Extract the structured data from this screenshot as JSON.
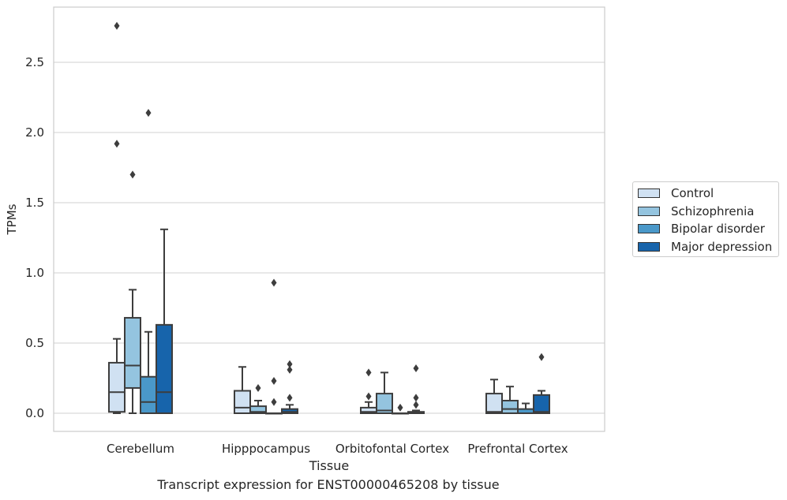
{
  "chart_data": {
    "type": "box",
    "title": "",
    "caption": "Transcript expression for ENST00000465208 by tissue",
    "xlabel": "Tissue",
    "ylabel": "TPMs",
    "ylim": [
      -0.13,
      2.9
    ],
    "yticks": [
      0.0,
      0.5,
      1.0,
      1.5,
      2.0,
      2.5
    ],
    "ytick_labels": [
      "0.0",
      "0.5",
      "1.0",
      "1.5",
      "2.0",
      "2.5"
    ],
    "grid": "horizontal",
    "legend_position": "right",
    "categories": [
      "Cerebellum",
      "Hipppocampus",
      "Orbitofontal Cortex",
      "Prefrontal Cortex"
    ],
    "series": [
      {
        "name": "Control",
        "color": "#d0e1f2",
        "boxes": [
          {
            "q1": 0.01,
            "median": 0.15,
            "q3": 0.36,
            "whisker_low": 0.0,
            "whisker_high": 0.53,
            "outliers": [
              1.92,
              2.76
            ]
          },
          {
            "q1": 0.0,
            "median": 0.04,
            "q3": 0.16,
            "whisker_low": 0.0,
            "whisker_high": 0.33,
            "outliers": []
          },
          {
            "q1": 0.0,
            "median": 0.01,
            "q3": 0.04,
            "whisker_low": 0.0,
            "whisker_high": 0.08,
            "outliers": [
              0.12,
              0.29
            ]
          },
          {
            "q1": 0.0,
            "median": 0.01,
            "q3": 0.14,
            "whisker_low": 0.0,
            "whisker_high": 0.24,
            "outliers": []
          }
        ]
      },
      {
        "name": "Schizophrenia",
        "color": "#94c4df",
        "boxes": [
          {
            "q1": 0.18,
            "median": 0.34,
            "q3": 0.68,
            "whisker_low": 0.0,
            "whisker_high": 0.88,
            "outliers": [
              1.7
            ]
          },
          {
            "q1": 0.0,
            "median": 0.01,
            "q3": 0.05,
            "whisker_low": 0.0,
            "whisker_high": 0.09,
            "outliers": [
              0.18
            ]
          },
          {
            "q1": 0.0,
            "median": 0.02,
            "q3": 0.14,
            "whisker_low": 0.0,
            "whisker_high": 0.29,
            "outliers": []
          },
          {
            "q1": 0.0,
            "median": 0.03,
            "q3": 0.09,
            "whisker_low": 0.0,
            "whisker_high": 0.19,
            "outliers": []
          }
        ]
      },
      {
        "name": "Bipolar disorder",
        "color": "#4a98c9",
        "boxes": [
          {
            "q1": 0.0,
            "median": 0.08,
            "q3": 0.26,
            "whisker_low": 0.0,
            "whisker_high": 0.58,
            "outliers": [
              2.14
            ]
          },
          {
            "q1": 0.0,
            "median": 0.0,
            "q3": 0.0,
            "whisker_low": 0.0,
            "whisker_high": 0.0,
            "outliers": [
              0.08,
              0.23,
              0.93
            ]
          },
          {
            "q1": 0.0,
            "median": 0.0,
            "q3": 0.0,
            "whisker_low": 0.0,
            "whisker_high": 0.0,
            "outliers": [
              0.04
            ]
          },
          {
            "q1": 0.0,
            "median": 0.0,
            "q3": 0.03,
            "whisker_low": 0.0,
            "whisker_high": 0.07,
            "outliers": []
          }
        ]
      },
      {
        "name": "Major depression",
        "color": "#1764ab",
        "boxes": [
          {
            "q1": 0.0,
            "median": 0.15,
            "q3": 0.63,
            "whisker_low": 0.0,
            "whisker_high": 1.31,
            "outliers": []
          },
          {
            "q1": 0.0,
            "median": 0.01,
            "q3": 0.03,
            "whisker_low": 0.0,
            "whisker_high": 0.06,
            "outliers": [
              0.11,
              0.31,
              0.35
            ]
          },
          {
            "q1": 0.0,
            "median": 0.0,
            "q3": 0.01,
            "whisker_low": 0.0,
            "whisker_high": 0.02,
            "outliers": [
              0.06,
              0.11,
              0.32
            ]
          },
          {
            "q1": 0.0,
            "median": 0.01,
            "q3": 0.13,
            "whisker_low": 0.0,
            "whisker_high": 0.16,
            "outliers": [
              0.4
            ]
          }
        ]
      }
    ]
  }
}
